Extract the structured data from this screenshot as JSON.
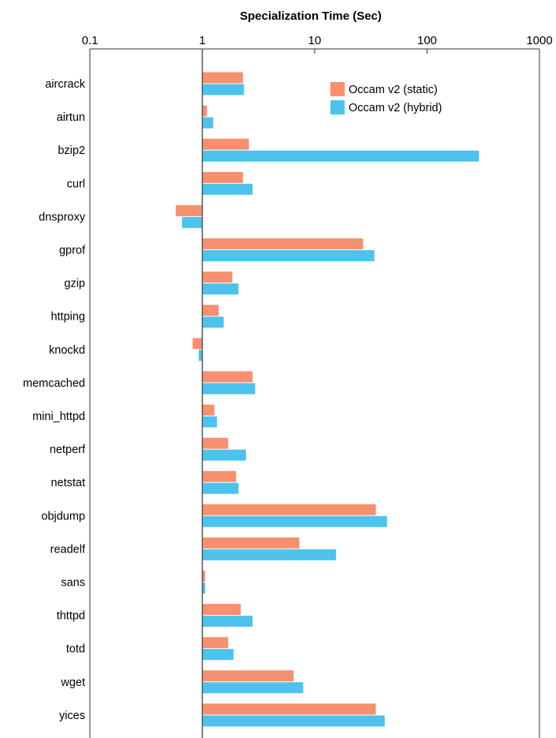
{
  "chart_data": {
    "type": "bar",
    "orientation": "horizontal",
    "title": "Specialization Time (Sec)",
    "xlabel": "Specialization Time (Sec)",
    "ylabel": "",
    "x_scale": "log",
    "xlim": [
      0.1,
      1000
    ],
    "x_ticks": [
      "0.1",
      "1",
      "10",
      "100",
      "1000"
    ],
    "grid": false,
    "legend_position": "top-right",
    "categories": [
      "aircrack",
      "airtun",
      "bzip2",
      "curl",
      "dnsproxy",
      "gprof",
      "gzip",
      "httping",
      "knockd",
      "memcached",
      "mini_httpd",
      "netperf",
      "netstat",
      "objdump",
      "readelf",
      "sans",
      "thttpd",
      "totd",
      "wget",
      "yices"
    ],
    "series": [
      {
        "name": "Occam v2 (static)",
        "color": "#f7906f",
        "values": [
          2.3,
          1.1,
          2.6,
          2.3,
          0.58,
          27,
          1.85,
          1.4,
          0.82,
          2.8,
          1.28,
          1.7,
          2.0,
          35,
          7.3,
          1.06,
          2.2,
          1.7,
          6.5,
          35
        ]
      },
      {
        "name": "Occam v2 (hybrid)",
        "color": "#4cc3ec",
        "values": [
          2.35,
          1.25,
          290,
          2.8,
          0.66,
          34,
          2.1,
          1.55,
          0.93,
          2.95,
          1.35,
          2.45,
          2.1,
          44,
          15.5,
          1.06,
          2.8,
          1.9,
          7.9,
          42
        ]
      }
    ]
  }
}
